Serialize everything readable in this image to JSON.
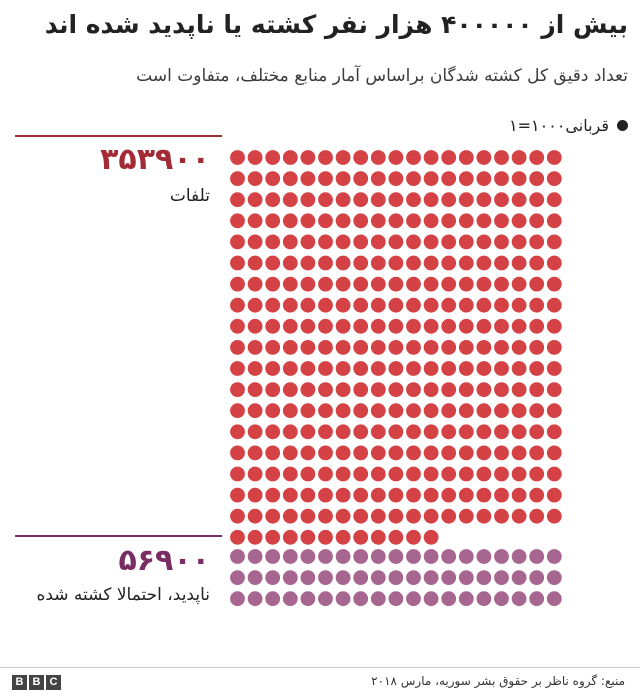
{
  "header": {
    "title": "بیش از ۴۰۰۰۰۰ هزار نفر کشته یا ناپدید شده اند",
    "subtitle": "تعداد دقیق کل کشته شدگان براساس آمار منابع مختلف، متفاوت است"
  },
  "legend": {
    "label": "قربانی۱۰۰۰=۱",
    "icon": "dot-icon"
  },
  "colors": {
    "deaths": "#d44245",
    "missing": "#a6668f",
    "deaths_rule": "#a32b36",
    "missing_rule": "#7a2d63"
  },
  "chart_data": {
    "type": "unit-dot",
    "unit_value": 1000,
    "series": [
      {
        "name": "تلفات",
        "value": 353900,
        "display_value": "۳۵۳۹۰۰",
        "dots": 354
      },
      {
        "name": "ناپدید، احتمالا کشته شده",
        "value": 56900,
        "display_value": "۵۶۹۰۰",
        "dots": 57
      }
    ]
  },
  "groups": {
    "deaths": {
      "number": "۳۵۳۹۰۰",
      "label": "تلفات"
    },
    "missing": {
      "number": "۵۶۹۰۰",
      "label": "ناپدید، احتمالا کشته شده"
    }
  },
  "footer": {
    "source": "منبع: گروه ناظر بر حقوق بشر سوریه، مارس ۲۰۱۸",
    "logo": [
      "B",
      "B",
      "C"
    ]
  }
}
